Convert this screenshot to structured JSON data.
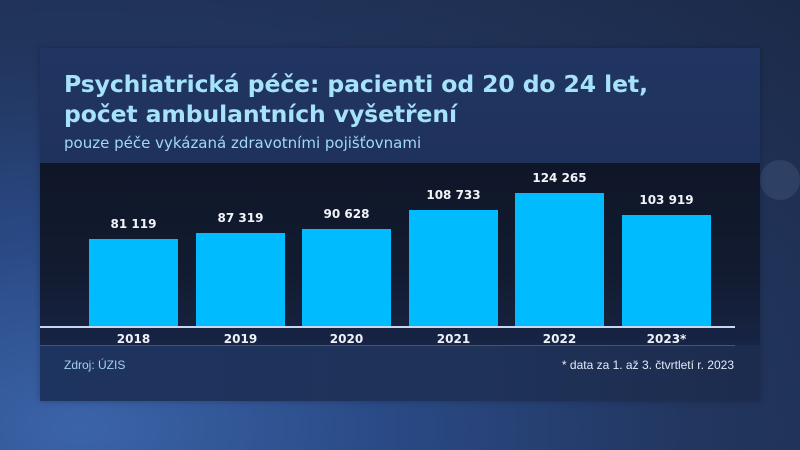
{
  "header": {
    "title_line1": "Psychiatrická péče: pacienti od 20 do 24 let,",
    "title_line2": "počet ambulantních vyšetření",
    "subtitle": "pouze péče vykázaná zdravotními pojišťovnami"
  },
  "footer": {
    "source": "Zdroj: ÚZIS",
    "note": "* data za 1. až 3. čtvrtletí r. 2023"
  },
  "colors": {
    "bar": "#00bcff",
    "title": "#a6e3fb",
    "plot_background": "#0f1628",
    "panel_background": "#1f3157"
  },
  "chart_data": {
    "type": "bar",
    "title": "Psychiatrická péče: pacienti od 20 do 24 let, počet ambulantních vyšetření",
    "subtitle": "pouze péče vykázaná zdravotními pojišťovnami",
    "categories": [
      "2018",
      "2019",
      "2020",
      "2021",
      "2022",
      "2023*"
    ],
    "values": [
      81119,
      87319,
      90628,
      108733,
      124265,
      103919
    ],
    "value_labels": [
      "81 119",
      "87 319",
      "90 628",
      "108 733",
      "124 265",
      "103 919"
    ],
    "xlabel": "",
    "ylabel": "",
    "grid": false,
    "legend": null,
    "annotations": [
      "* data za 1. až 3. čtvrtletí r. 2023"
    ],
    "source": "Zdroj: ÚZIS"
  }
}
